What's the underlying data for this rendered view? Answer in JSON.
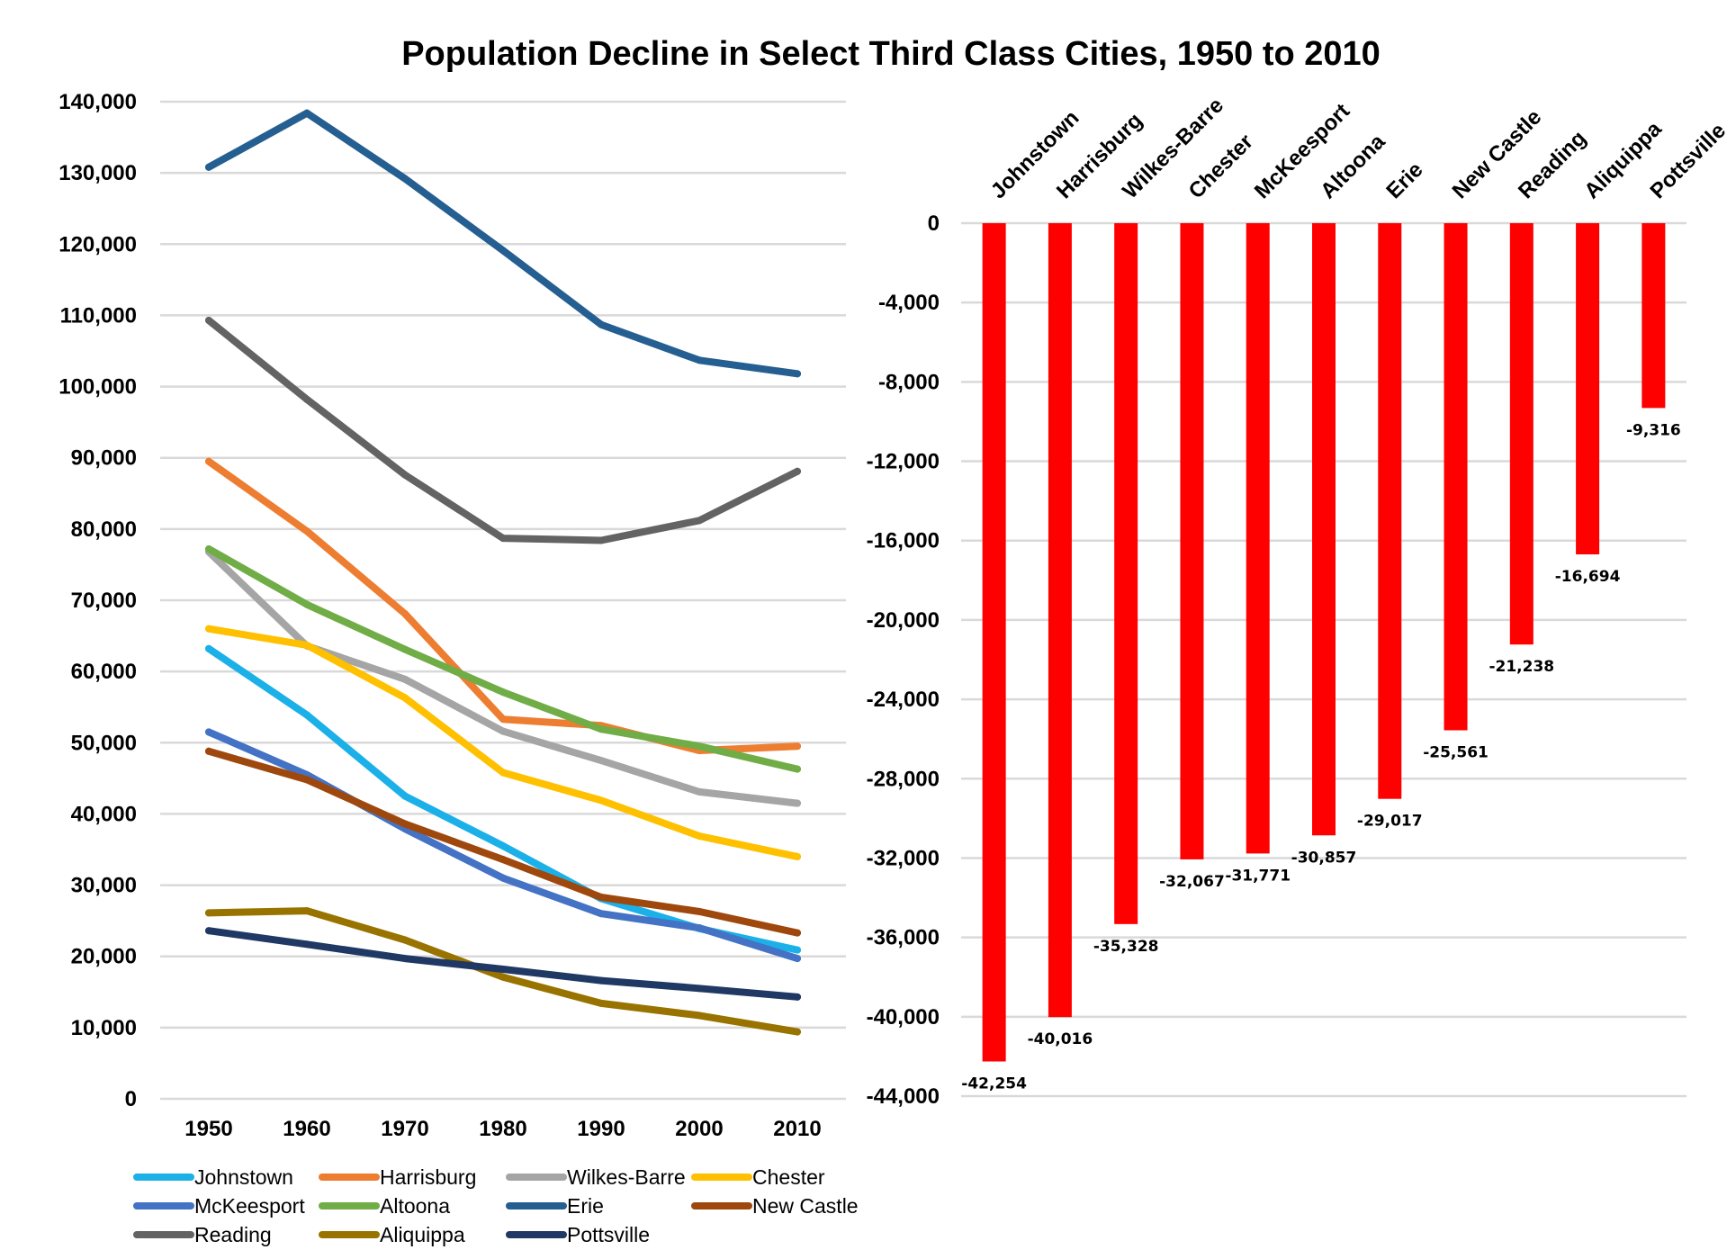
{
  "title": "Population Decline in Select Third Class Cities, 1950 to 2010",
  "chart_data": [
    {
      "type": "line",
      "title": "Population Decline in Select Third Class Cities, 1950 to 2010",
      "x": [
        "1950",
        "1960",
        "1970",
        "1980",
        "1990",
        "2000",
        "2010"
      ],
      "ylim": [
        0,
        140000
      ],
      "y_ticks": [
        "0",
        "10,000",
        "20,000",
        "30,000",
        "40,000",
        "50,000",
        "60,000",
        "70,000",
        "80,000",
        "90,000",
        "100,000",
        "110,000",
        "120,000",
        "130,000",
        "140,000"
      ],
      "grid": true,
      "legend_position": "bottom",
      "series": [
        {
          "name": "Johnstown",
          "color": "#1CB0E8",
          "values": [
            63200,
            53900,
            42500,
            35500,
            28100,
            23900,
            20900
          ]
        },
        {
          "name": "Harrisburg",
          "color": "#ED7D31",
          "values": [
            89500,
            79700,
            68100,
            53300,
            52400,
            48900,
            49500
          ]
        },
        {
          "name": "Wilkes-Barre",
          "color": "#A5A5A5",
          "values": [
            76800,
            63600,
            58900,
            51600,
            47500,
            43100,
            41500
          ]
        },
        {
          "name": "Chester",
          "color": "#FFC000",
          "values": [
            66000,
            63700,
            56300,
            45800,
            41900,
            36900,
            34000
          ]
        },
        {
          "name": "McKeesport",
          "color": "#4472C4",
          "values": [
            51500,
            45500,
            37900,
            31000,
            26000,
            24000,
            19700
          ]
        },
        {
          "name": "Altoona",
          "color": "#70AD47",
          "values": [
            77200,
            69400,
            63100,
            57100,
            51900,
            49500,
            46300
          ]
        },
        {
          "name": "Erie",
          "color": "#255E91",
          "values": [
            130800,
            138400,
            129200,
            119100,
            108700,
            103700,
            101800
          ]
        },
        {
          "name": "New Castle",
          "color": "#9E480E",
          "values": [
            48800,
            44800,
            38600,
            33600,
            28300,
            26300,
            23300
          ]
        },
        {
          "name": "Reading",
          "color": "#636363",
          "values": [
            109300,
            98200,
            87600,
            78700,
            78400,
            81200,
            88100
          ]
        },
        {
          "name": "Aliquippa",
          "color": "#997300",
          "values": [
            26100,
            26400,
            22300,
            17100,
            13400,
            11700,
            9400
          ]
        },
        {
          "name": "Pottsville",
          "color": "#203864",
          "values": [
            23600,
            21700,
            19700,
            18200,
            16600,
            15500,
            14300
          ]
        }
      ]
    },
    {
      "type": "bar",
      "categories": [
        "Johnstown",
        "Harrisburg",
        "Wilkes-Barre",
        "Chester",
        "McKeesport",
        "Altoona",
        "Erie",
        "New Castle",
        "Reading",
        "Aliquippa",
        "Pottsville"
      ],
      "values": [
        -42254,
        -40016,
        -35328,
        -32067,
        -31771,
        -30857,
        -29017,
        -25561,
        -21238,
        -16694,
        -9316
      ],
      "data_labels": [
        "-42,254",
        "-40,016",
        "-35,328",
        "-32,067",
        "-31,771",
        "-30,857",
        "-29,017",
        "-25,561",
        "-21,238",
        "-16,694",
        "-9,316"
      ],
      "ylim": [
        -44000,
        0
      ],
      "y_ticks": [
        "0",
        "-4,000",
        "-8,000",
        "-12,000",
        "-16,000",
        "-20,000",
        "-24,000",
        "-28,000",
        "-32,000",
        "-36,000",
        "-40,000",
        "-44,000"
      ],
      "bar_color": "#FF0000",
      "grid": true
    }
  ]
}
